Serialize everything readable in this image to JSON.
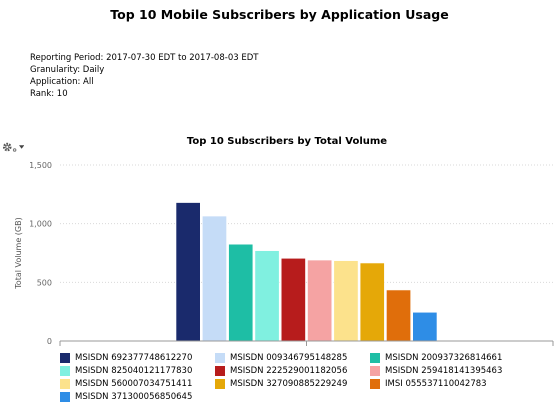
{
  "report": {
    "title": "Top 10 Mobile Subscribers by Application Usage",
    "meta": [
      "Reporting Period: 2017-07-30 EDT to 2017-08-03 EDT",
      "Granularity: Daily",
      "Application: All",
      "Rank: 10"
    ]
  },
  "toolbar": {
    "options_icon": "gear-icon"
  },
  "chart_data": {
    "type": "bar",
    "title": "Top 10 Subscribers by Total Volume",
    "xlabel": "",
    "ylabel": "Total Volume (GB)",
    "ylim": [
      0,
      1500
    ],
    "yticks": [
      0,
      500,
      1000,
      1500
    ],
    "ytick_labels": [
      "0",
      "500",
      "1,000",
      "1,500"
    ],
    "grid": true,
    "legend_position": "bottom",
    "series": [
      {
        "name": "MSISDN 692377748612270",
        "value": 1180,
        "color": "#1a2a6c"
      },
      {
        "name": "MSISDN 009346795148285",
        "value": 1065,
        "color": "#c5dcf7"
      },
      {
        "name": "MSISDN 200937326814661",
        "value": 825,
        "color": "#1ebea5"
      },
      {
        "name": "MSISDN 825040121177830",
        "value": 770,
        "color": "#80f0e0"
      },
      {
        "name": "MSISDN 222529001182056",
        "value": 705,
        "color": "#b71c1c"
      },
      {
        "name": "MSISDN 259418141395463",
        "value": 690,
        "color": "#f5a3a3"
      },
      {
        "name": "MSISDN 560007034751411",
        "value": 685,
        "color": "#fce28c"
      },
      {
        "name": "MSISDN 327090885229249",
        "value": 665,
        "color": "#e5a808"
      },
      {
        "name": "IMSI 055537110042783",
        "value": 435,
        "color": "#e06e0b"
      },
      {
        "name": "MSISDN 371300056850645",
        "value": 245,
        "color": "#2e8de6"
      }
    ]
  }
}
